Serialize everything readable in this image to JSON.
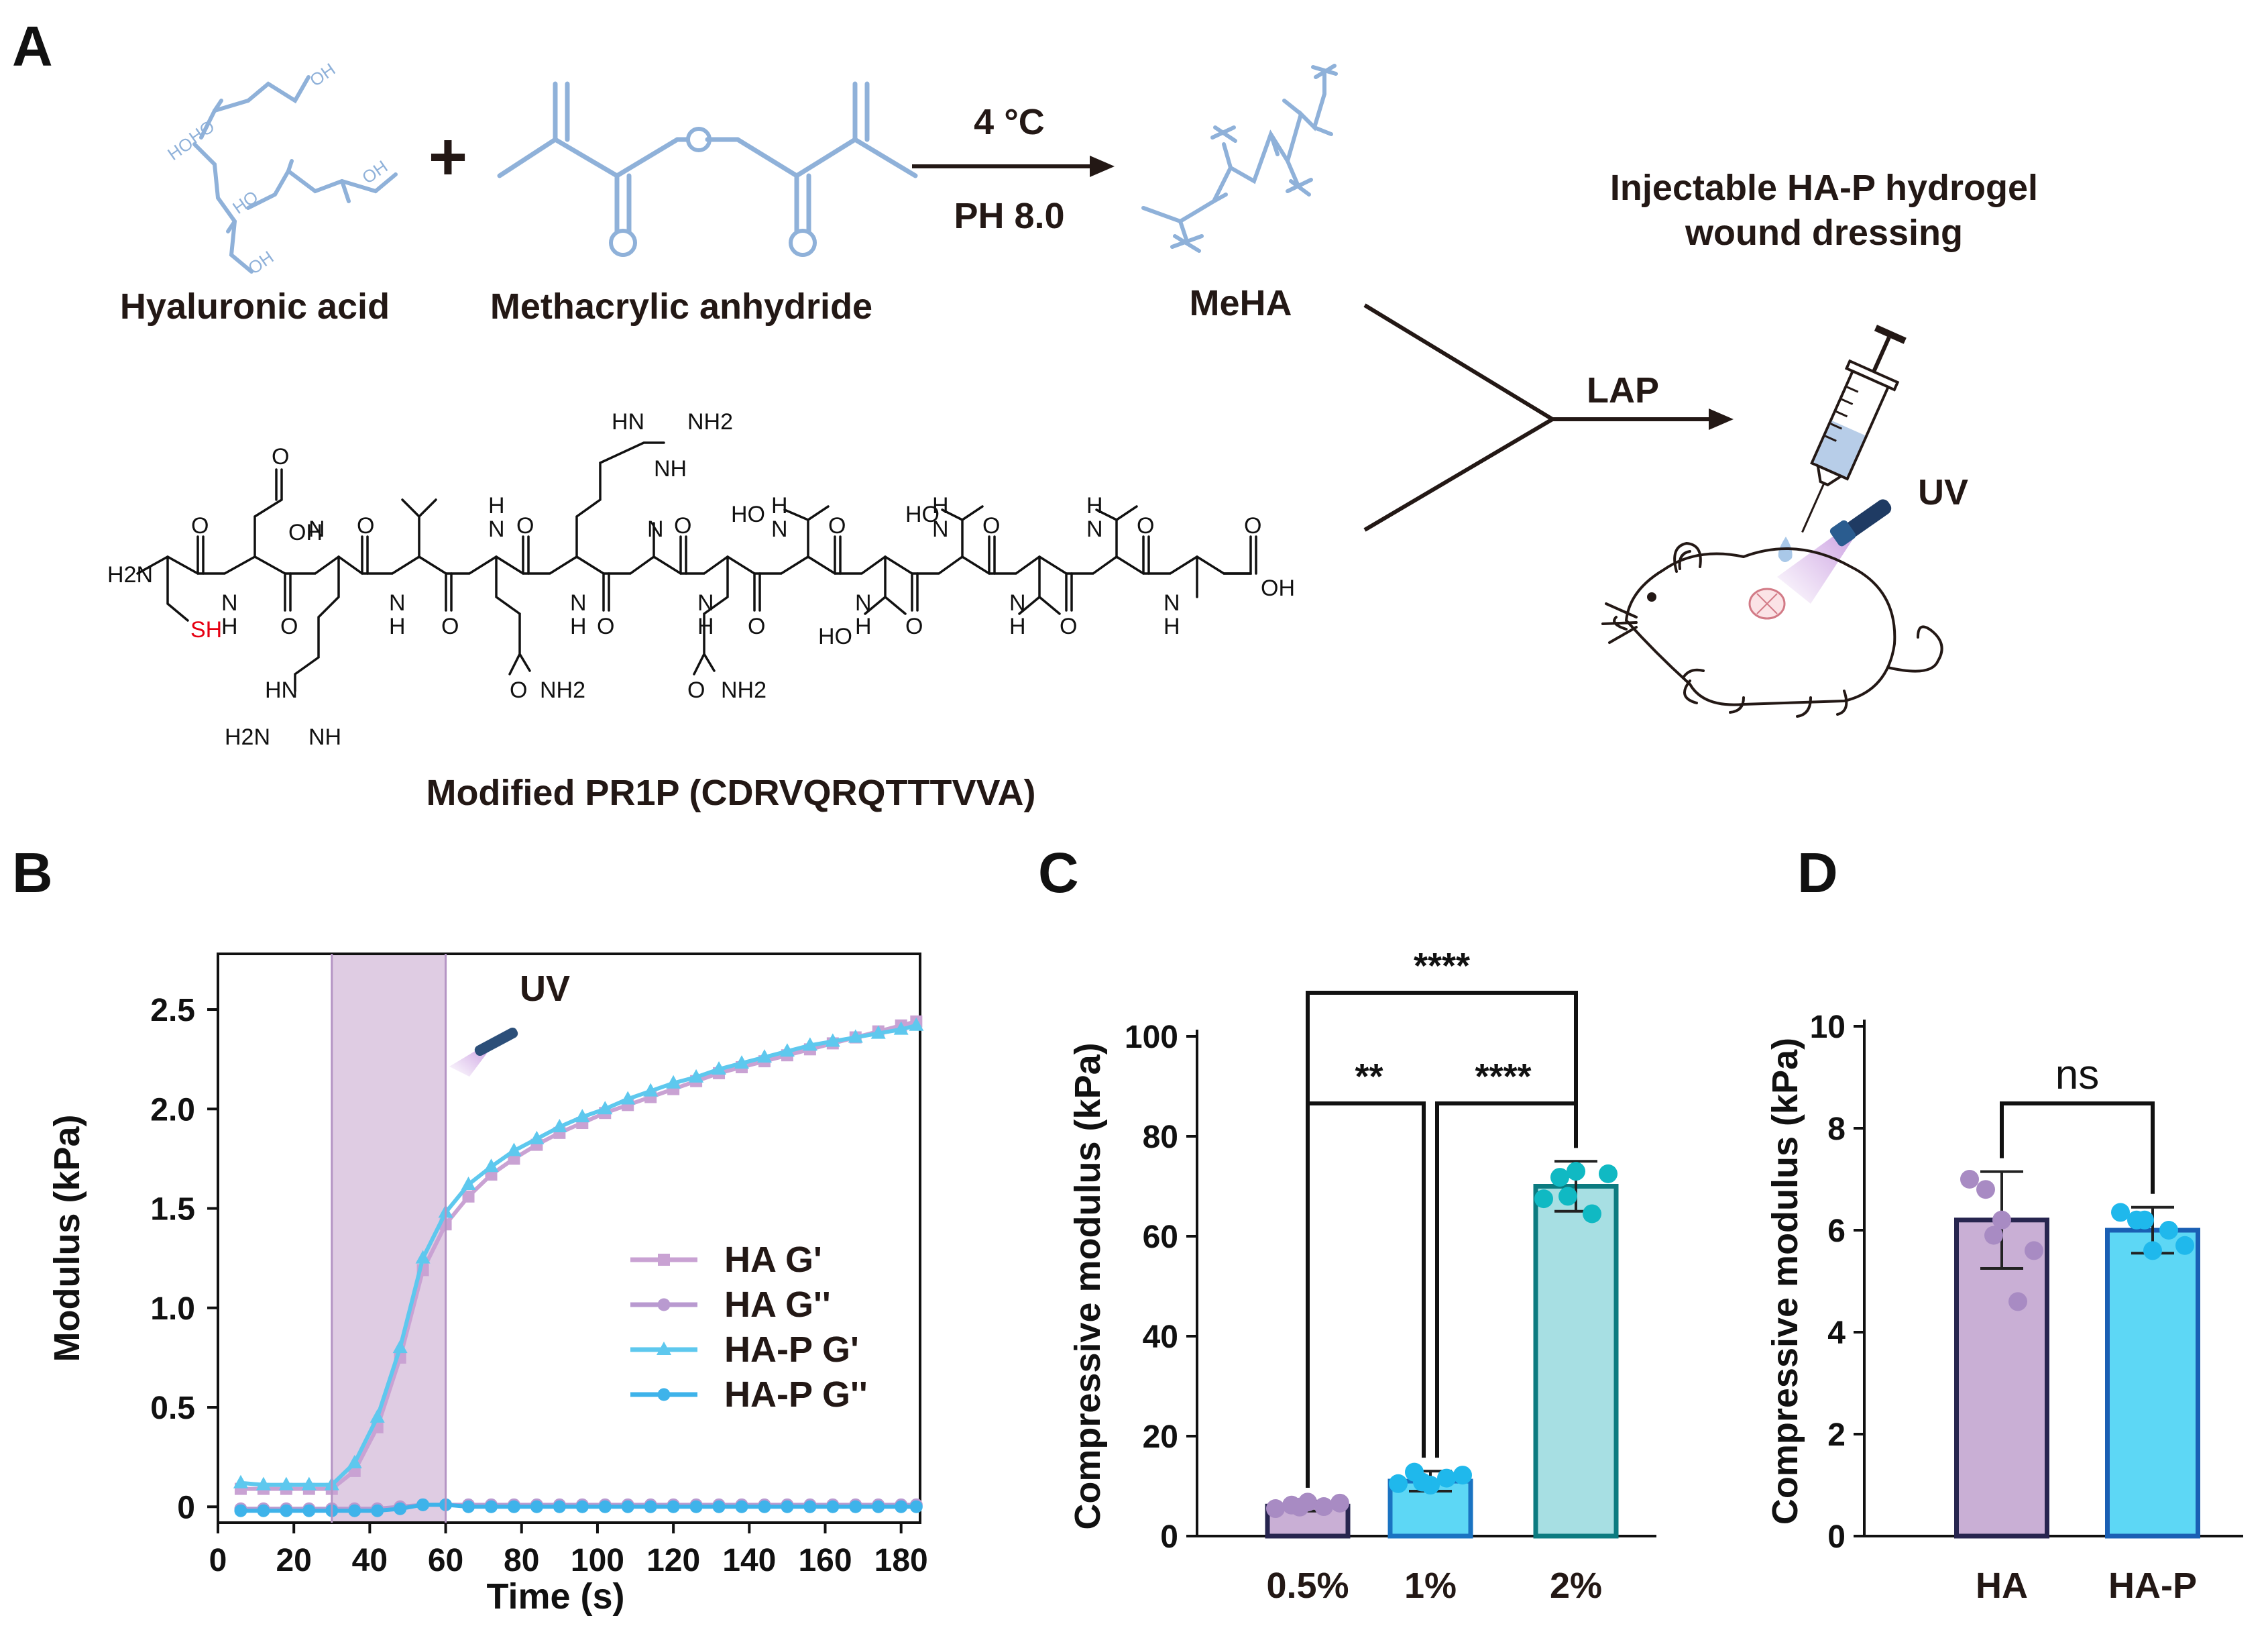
{
  "panels": {
    "a": "A",
    "b": "B",
    "c": "C",
    "d": "D"
  },
  "scheme": {
    "reactant1": "Hyaluronic acid",
    "plus": "+",
    "reactant2": "Methacrylic anhydride",
    "cond1": "4 °C",
    "cond2": "PH 8.0",
    "product": "MeHA",
    "lap": "LAP",
    "dressing_line1": "Injectable HA-P hydrogel",
    "dressing_line2": "wound dressing",
    "uv": "UV",
    "peptide": "Modified PR1P (CDRVQRQTTTVVA)",
    "atoms": {
      "oh": "OH",
      "ho": "HO",
      "sh": "SH",
      "nh": "NH",
      "hn": "HN",
      "h": "H",
      "n": "N",
      "o": "O",
      "nh2": "NH2",
      "h2n": "H2N",
      "h2": "2"
    }
  },
  "colors": {
    "ha": "#c9afd5",
    "ha_dot": "#a88bc3",
    "hap": "#5dd7f5",
    "hap_dot": "#1fb8ec",
    "twopct": "#a7dfe3",
    "twopct_dot": "#10b9c3",
    "uv_band": "#d9c3de",
    "chem": "#8fb1d9"
  },
  "chart_data": [
    {
      "type": "line",
      "xlabel": "Time (s)",
      "ylabel": "Modulus (kPa)",
      "xlim": [
        0,
        185
      ],
      "ylim": [
        -0.08,
        2.78
      ],
      "xticks": [
        0,
        20,
        40,
        60,
        80,
        100,
        120,
        140,
        160,
        180
      ],
      "yticks": [
        0,
        0.5,
        1.0,
        1.5,
        2.0,
        2.5
      ],
      "ytick_labels": [
        "0",
        "0.5",
        "1.0",
        "1.5",
        "2.0",
        "2.5"
      ],
      "grid": false,
      "legend": "lower-right",
      "annotation": "UV",
      "uv_window": [
        30,
        60
      ],
      "x": [
        6,
        12,
        18,
        24,
        30,
        36,
        42,
        48,
        54,
        60,
        66,
        72,
        78,
        84,
        90,
        96,
        102,
        108,
        114,
        120,
        126,
        132,
        138,
        144,
        150,
        156,
        162,
        168,
        174,
        180,
        184
      ],
      "series": [
        {
          "name": "HA G'",
          "marker": "square",
          "color": "#c9a2d3",
          "values": [
            0.09,
            0.09,
            0.09,
            0.09,
            0.09,
            0.18,
            0.4,
            0.75,
            1.19,
            1.42,
            1.56,
            1.67,
            1.75,
            1.82,
            1.88,
            1.93,
            1.98,
            2.02,
            2.06,
            2.1,
            2.14,
            2.18,
            2.21,
            2.24,
            2.27,
            2.3,
            2.33,
            2.36,
            2.39,
            2.42,
            2.44
          ]
        },
        {
          "name": "HA G''",
          "marker": "circle",
          "color": "#b99ad0",
          "values": [
            -0.01,
            -0.01,
            -0.01,
            -0.01,
            -0.01,
            -0.01,
            -0.01,
            0,
            0.01,
            0.01,
            0.01,
            0.01,
            0.01,
            0.01,
            0.01,
            0.01,
            0.01,
            0.01,
            0.01,
            0.01,
            0.01,
            0.01,
            0.01,
            0.01,
            0.01,
            0.01,
            0.01,
            0.01,
            0.01,
            0.01,
            0.01
          ]
        },
        {
          "name": "HA-P G'",
          "marker": "triangle",
          "color": "#5ec8ee",
          "values": [
            0.12,
            0.11,
            0.11,
            0.11,
            0.11,
            0.22,
            0.45,
            0.8,
            1.25,
            1.48,
            1.62,
            1.71,
            1.79,
            1.85,
            1.91,
            1.96,
            2.0,
            2.05,
            2.09,
            2.13,
            2.16,
            2.2,
            2.23,
            2.26,
            2.29,
            2.32,
            2.34,
            2.36,
            2.38,
            2.4,
            2.42
          ]
        },
        {
          "name": "HA-P G''",
          "marker": "circle",
          "color": "#3eb3ea",
          "values": [
            -0.02,
            -0.02,
            -0.02,
            -0.02,
            -0.02,
            -0.02,
            -0.02,
            -0.01,
            0.01,
            0.01,
            0,
            0,
            0,
            0,
            0,
            0,
            0,
            0,
            0,
            0,
            0,
            0,
            0,
            0,
            0,
            0,
            0,
            0,
            0,
            0,
            0
          ]
        }
      ]
    },
    {
      "type": "bar",
      "ylabel": "Compressive modulus (kPa)",
      "xlabel": "",
      "ylim": [
        0,
        100
      ],
      "yticks": [
        0,
        20,
        40,
        60,
        80,
        100
      ],
      "categories": [
        "0.5%",
        "1%",
        "2%"
      ],
      "values": [
        6,
        11,
        70
      ],
      "errors": [
        1.0,
        2.0,
        5.0
      ],
      "points": [
        [
          5.5,
          6.2,
          6.8,
          5.9,
          6.6,
          5.8
        ],
        [
          10.5,
          12.8,
          10.2,
          11.6,
          12.2,
          10.8
        ],
        [
          67.5,
          71.8,
          73.0,
          64.5,
          72.5,
          68.0
        ]
      ],
      "significance": [
        {
          "pair": [
            0,
            2
          ],
          "label": "****"
        },
        {
          "pair": [
            0,
            1
          ],
          "label": "**"
        },
        {
          "pair": [
            1,
            2
          ],
          "label": "****"
        }
      ]
    },
    {
      "type": "bar",
      "ylabel": "Compressive modulus (kPa)",
      "xlabel": "",
      "ylim": [
        0,
        10
      ],
      "yticks": [
        0,
        2,
        4,
        6,
        8,
        10
      ],
      "categories": [
        "HA",
        "HA-P"
      ],
      "values": [
        6.2,
        6.0
      ],
      "errors": [
        0.95,
        0.45
      ],
      "points": [
        [
          7.0,
          6.8,
          6.2,
          4.6,
          5.6,
          5.9
        ],
        [
          6.35,
          6.2,
          5.6,
          6.0,
          5.7,
          6.2
        ]
      ],
      "significance": [
        {
          "pair": [
            0,
            1
          ],
          "label": "ns"
        }
      ]
    }
  ]
}
